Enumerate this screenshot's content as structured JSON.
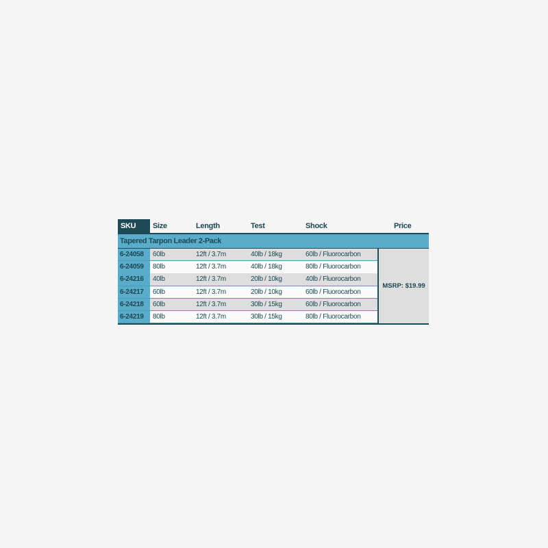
{
  "headers": {
    "sku": "SKU",
    "size": "Size",
    "length": "Length",
    "test": "Test",
    "shock": "Shock",
    "price": "Price"
  },
  "group_title": "Tapered Tarpon Leader 2-Pack",
  "rows": [
    {
      "sku": "6-24058",
      "size": "60lb",
      "length": "12ft / 3.7m",
      "test": "40lb / 18kg",
      "shock": "60lb / Fluorocarbon"
    },
    {
      "sku": "6-24059",
      "size": "80lb",
      "length": "12ft / 3.7m",
      "test": "40lb / 18kg",
      "shock": "80lb / Fluorocarbon"
    },
    {
      "sku": "6-24216",
      "size": "40lb",
      "length": "12ft / 3.7m",
      "test": "20lb / 10kg",
      "shock": "40lb / Fluorocarbon"
    },
    {
      "sku": "6-24217",
      "size": "60lb",
      "length": "12ft / 3.7m",
      "test": "20lb / 10kg",
      "shock": "60lb / Fluorocarbon"
    },
    {
      "sku": "6-24218",
      "size": "60lb",
      "length": "12ft / 3.7m",
      "test": "30lb / 15kg",
      "shock": "60lb / Fluorocarbon"
    },
    {
      "sku": "6-24219",
      "size": "80lb",
      "length": "12ft / 3.7m",
      "test": "30lb / 15kg",
      "shock": "80lb / Fluorocarbon"
    }
  ],
  "price": "MSRP: $19.99",
  "colors": {
    "dark_teal": "#1d4a55",
    "accent_blue": "#5aaccb",
    "row_gray": "#dededf"
  }
}
